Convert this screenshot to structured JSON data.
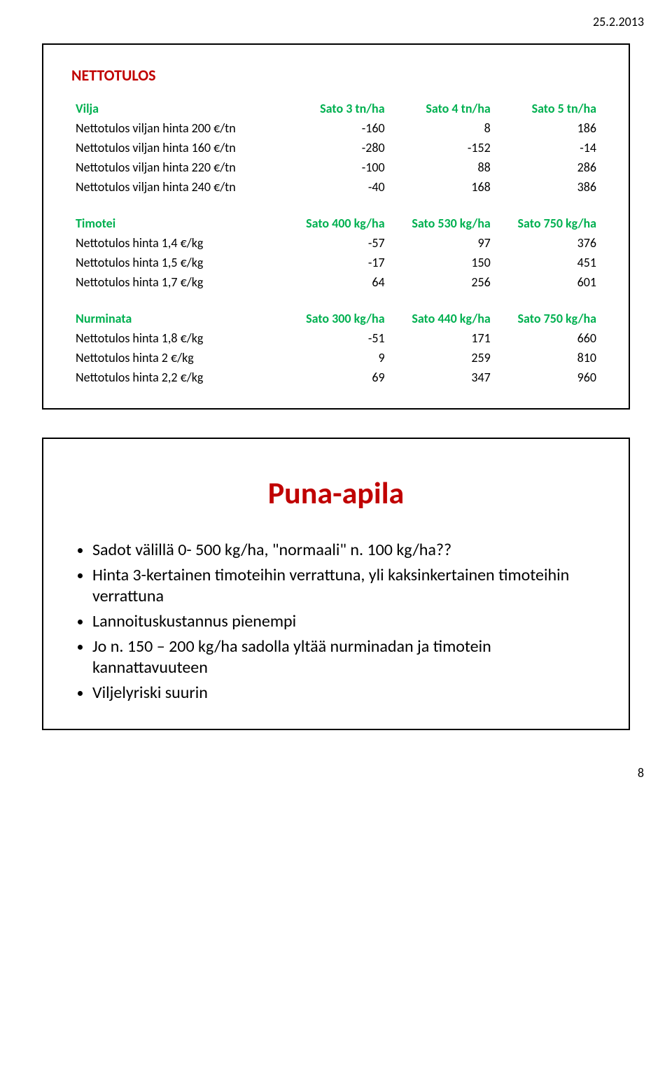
{
  "header_date": "25.2.2013",
  "page_number": "8",
  "slide1": {
    "title": "NETTOTULOS",
    "tables": [
      {
        "header_color": "#00b050",
        "headers": [
          "Vilja",
          "Sato 3 tn/ha",
          "Sato 4 tn/ha",
          "Sato 5 tn/ha"
        ],
        "rows": [
          [
            "Nettotulos viljan hinta 200 €/tn",
            "-160",
            "8",
            "186"
          ],
          [
            "Nettotulos viljan hinta 160 €/tn",
            "-280",
            "-152",
            "-14"
          ],
          [
            "Nettotulos viljan hinta 220 €/tn",
            "-100",
            "88",
            "286"
          ],
          [
            "Nettotulos viljan hinta 240 €/tn",
            "-40",
            "168",
            "386"
          ]
        ]
      },
      {
        "header_color": "#00b050",
        "headers": [
          "Timotei",
          "Sato 400 kg/ha",
          "Sato 530 kg/ha",
          "Sato 750 kg/ha"
        ],
        "rows": [
          [
            "Nettotulos hinta 1,4 €/kg",
            "-57",
            "97",
            "376"
          ],
          [
            "Nettotulos hinta 1,5 €/kg",
            "-17",
            "150",
            "451"
          ],
          [
            "Nettotulos hinta 1,7 €/kg",
            "64",
            "256",
            "601"
          ]
        ]
      },
      {
        "header_color": "#00b050",
        "headers": [
          "Nurminata",
          "Sato 300 kg/ha",
          "Sato 440 kg/ha",
          "Sato 750 kg/ha"
        ],
        "rows": [
          [
            "Nettotulos hinta 1,8 €/kg",
            "-51",
            "171",
            "660"
          ],
          [
            "Nettotulos hinta 2 €/kg",
            "9",
            "259",
            "810"
          ],
          [
            "Nettotulos hinta 2,2 €/kg",
            "69",
            "347",
            "960"
          ]
        ]
      }
    ]
  },
  "slide2": {
    "title": "Puna-apila",
    "bullets": [
      "Sadot välillä 0- 500 kg/ha, \"normaali\" n. 100 kg/ha??",
      "Hinta 3-kertainen timoteihin verrattuna, yli kaksinkertainen timoteihin verrattuna",
      "Lannoituskustannus pienempi",
      "Jo n. 150 – 200 kg/ha sadolla yltää nurminadan ja timotein kannattavuuteen",
      "Viljelyriski suurin"
    ]
  }
}
